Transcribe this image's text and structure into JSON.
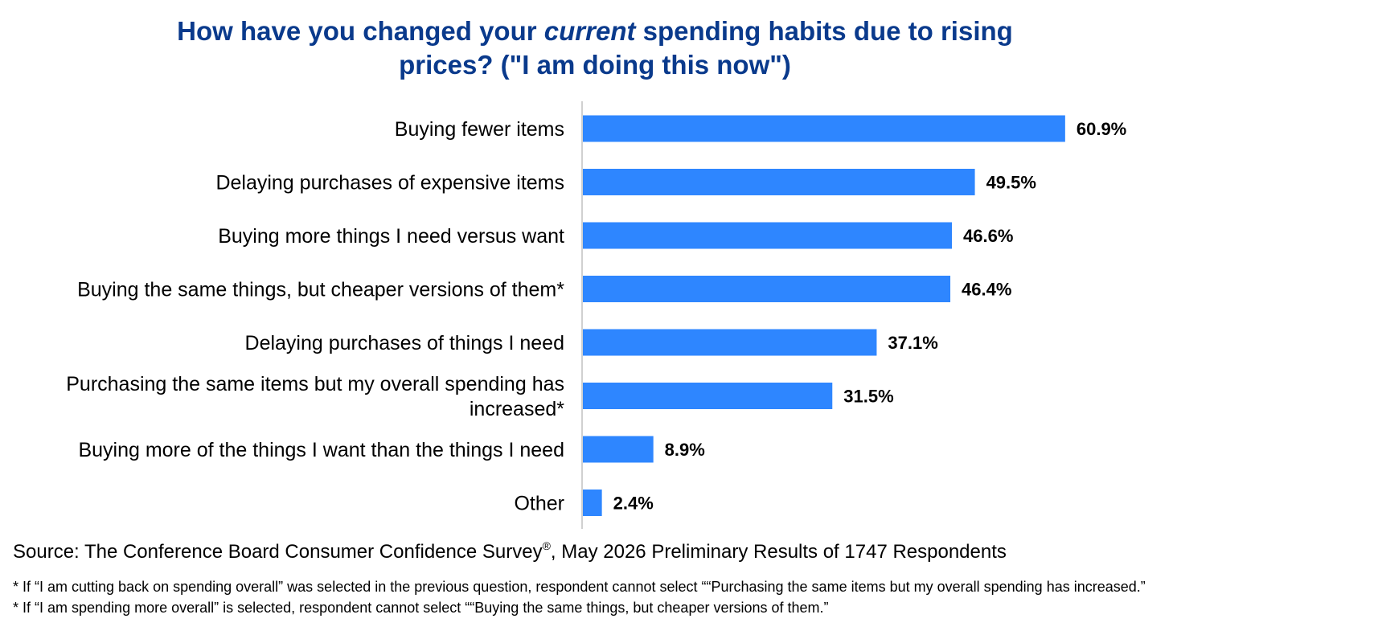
{
  "title": {
    "part1": "How have you changed your ",
    "emphasis": "current",
    "part2": " spending habits due to rising",
    "line2": "prices? (\"I am doing this now\")"
  },
  "chart_data": {
    "type": "bar",
    "orientation": "horizontal",
    "categories": [
      "Buying fewer items",
      "Delaying purchases of expensive items",
      "Buying more things I need versus want",
      "Buying the same things, but cheaper versions of them*",
      "Delaying purchases of things I need",
      "Purchasing the same items but my overall spending has increased*",
      "Buying more of the things I want than the things I need",
      "Other"
    ],
    "category_lines": [
      [
        "Buying fewer items"
      ],
      [
        "Delaying purchases of expensive items"
      ],
      [
        "Buying more things I need versus want"
      ],
      [
        "Buying the same things, but cheaper versions of them*"
      ],
      [
        "Delaying purchases of things I need"
      ],
      [
        "Purchasing the same items but my overall spending has",
        "increased*"
      ],
      [
        "Buying more of the things I want than the things I need"
      ],
      [
        "Other"
      ]
    ],
    "values": [
      60.9,
      49.5,
      46.6,
      46.4,
      37.1,
      31.5,
      8.9,
      2.4
    ],
    "data_labels": [
      "60.9%",
      "49.5%",
      "46.6%",
      "46.4%",
      "37.1%",
      "31.5%",
      "8.9%",
      "2.4%"
    ],
    "xlim": [
      0,
      100
    ],
    "bar_color": "#2e86ff",
    "axis_color": "#d0d0d0",
    "grid": false,
    "legend": "none"
  },
  "source": {
    "prefix": "Source: The Conference Board Consumer Confidence Survey",
    "mark": "®",
    "suffix": ", May 2026 Preliminary Results of 1747 Respondents"
  },
  "notes": [
    "* If “I am cutting back on spending overall” was selected in the previous question, respondent cannot select ““Purchasing the same items but my overall spending has increased.”",
    "* If “I am spending more overall” is selected, respondent cannot select ““Buying the same things, but cheaper versions of them.”"
  ]
}
